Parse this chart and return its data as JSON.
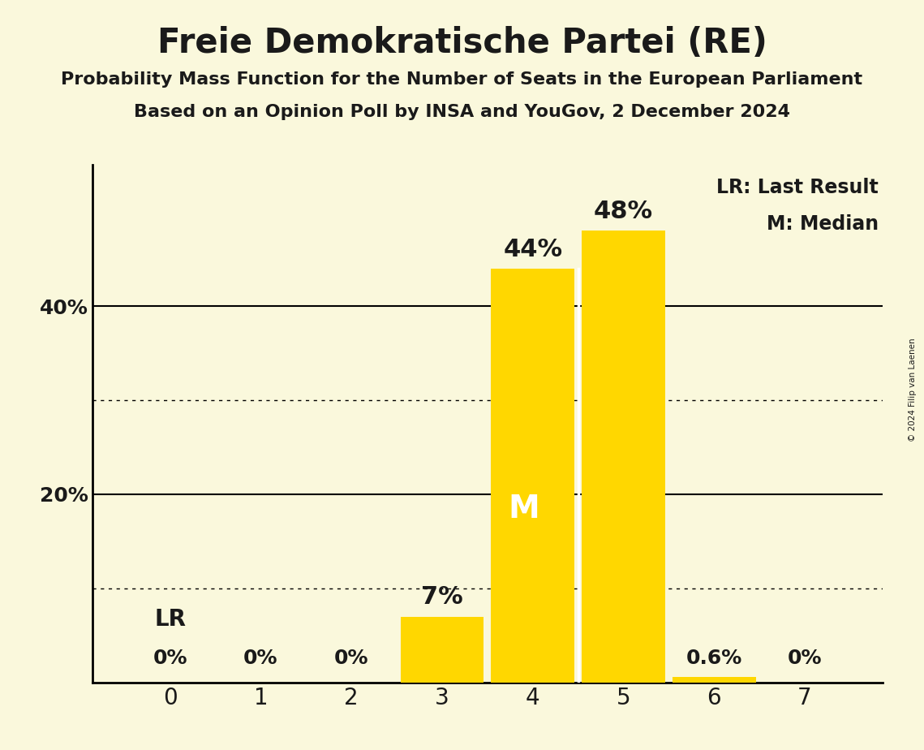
{
  "title": "Freie Demokratische Partei (RE)",
  "subtitle1": "Probability Mass Function for the Number of Seats in the European Parliament",
  "subtitle2": "Based on an Opinion Poll by INSA and YouGov, 2 December 2024",
  "copyright": "© 2024 Filip van Laenen",
  "categories": [
    0,
    1,
    2,
    3,
    4,
    5,
    6,
    7
  ],
  "values": [
    0.0,
    0.0,
    0.0,
    7.0,
    44.0,
    48.0,
    0.6,
    0.0
  ],
  "bar_color": "#FFD700",
  "background_color": "#FAF8DC",
  "text_color": "#1a1a1a",
  "median_bar_idx": 4,
  "legend_lr": "LR: Last Result",
  "legend_m": "M: Median",
  "median_label": "M",
  "lr_label": "LR",
  "ylim": [
    0,
    55
  ],
  "dotted_lines": [
    10,
    30
  ],
  "solid_lines": [
    20,
    40
  ],
  "value_labels": {
    "0": "0%",
    "1": "0%",
    "2": "0%",
    "3": "7%",
    "4": "44%",
    "5": "48%",
    "6": "0.6%",
    "7": "0%"
  },
  "title_fontsize": 30,
  "subtitle_fontsize": 16,
  "tick_fontsize": 18,
  "label_fontsize_large": 22,
  "label_fontsize_small": 18,
  "legend_fontsize": 17,
  "median_fontsize": 28,
  "lr_fontsize": 20,
  "bar_width": 0.92
}
